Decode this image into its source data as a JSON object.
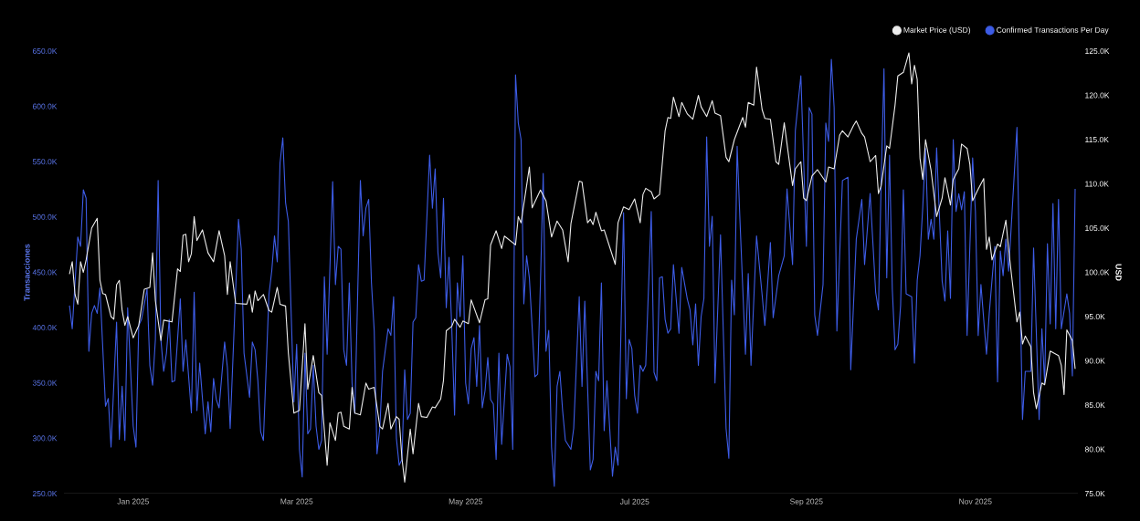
{
  "chart_data": {
    "type": "line",
    "ylabel": "Transacciones",
    "y2label": "USD",
    "legend": "top right",
    "xlim": [
      "2024-12-07",
      "2025-12-08"
    ],
    "xticks": [
      {
        "value": "2025-01-01",
        "label": "Jan 2025"
      },
      {
        "value": "2025-03-01",
        "label": "Mar 2025"
      },
      {
        "value": "2025-05-01",
        "label": "May 2025"
      },
      {
        "value": "2025-07-01",
        "label": "Jul 2025"
      },
      {
        "value": "2025-09-01",
        "label": "Sep 2025"
      },
      {
        "value": "2025-11-01",
        "label": "Nov 2025"
      }
    ],
    "ylim": [
      250000,
      650000
    ],
    "yticks": [
      {
        "value": 250000,
        "label": "250.0K"
      },
      {
        "value": 300000,
        "label": "300.0K"
      },
      {
        "value": 350000,
        "label": "350.0K"
      },
      {
        "value": 400000,
        "label": "400.0K"
      },
      {
        "value": 450000,
        "label": "450.0K"
      },
      {
        "value": 500000,
        "label": "500.0K"
      },
      {
        "value": 550000,
        "label": "550.0K"
      },
      {
        "value": 600000,
        "label": "600.0K"
      },
      {
        "value": 650000,
        "label": "650.0K"
      }
    ],
    "y2lim": [
      75000,
      125000
    ],
    "y2ticks": [
      {
        "value": 75000,
        "label": "75.0K"
      },
      {
        "value": 80000,
        "label": "80.0K"
      },
      {
        "value": 85000,
        "label": "85.0K"
      },
      {
        "value": 90000,
        "label": "90.0K"
      },
      {
        "value": 95000,
        "label": "95.0K"
      },
      {
        "value": 100000,
        "label": "100.0K"
      },
      {
        "value": 105000,
        "label": "105.0K"
      },
      {
        "value": 110000,
        "label": "110.0K"
      },
      {
        "value": 115000,
        "label": "115.0K"
      },
      {
        "value": 120000,
        "label": "120.0K"
      },
      {
        "value": 125000,
        "label": "125.0K"
      }
    ],
    "series": [
      {
        "name": "Market Price (USD)",
        "color": "#ececec",
        "axis": "y2",
        "x": [
          "2024-12-09",
          "2024-12-10",
          "2024-12-11",
          "2024-12-12",
          "2024-12-13",
          "2024-12-14",
          "2024-12-15",
          "2024-12-17",
          "2024-12-19",
          "2024-12-20",
          "2024-12-21",
          "2024-12-22",
          "2024-12-24",
          "2024-12-25",
          "2024-12-26",
          "2024-12-27",
          "2024-12-28",
          "2024-12-29",
          "2024-12-30",
          "2025-01-01",
          "2025-01-03",
          "2025-01-05",
          "2025-01-07",
          "2025-01-08",
          "2025-01-09",
          "2025-01-11",
          "2025-01-12",
          "2025-01-15",
          "2025-01-17",
          "2025-01-18",
          "2025-01-19",
          "2025-01-20",
          "2025-01-21",
          "2025-01-22",
          "2025-01-23",
          "2025-01-24",
          "2025-01-26",
          "2025-01-28",
          "2025-01-30",
          "2025-02-01",
          "2025-02-03",
          "2025-02-04",
          "2025-02-05",
          "2025-02-07",
          "2025-02-11",
          "2025-02-12",
          "2025-02-13",
          "2025-02-14",
          "2025-02-15",
          "2025-02-17",
          "2025-02-19",
          "2025-02-20",
          "2025-02-22",
          "2025-02-23",
          "2025-02-25",
          "2025-02-26",
          "2025-02-28",
          "2025-03-02",
          "2025-03-04",
          "2025-03-05",
          "2025-03-07",
          "2025-03-09",
          "2025-03-10",
          "2025-03-12",
          "2025-03-13",
          "2025-03-15",
          "2025-03-16",
          "2025-03-17",
          "2025-03-18",
          "2025-03-20",
          "2025-03-21",
          "2025-03-22",
          "2025-03-24",
          "2025-03-26",
          "2025-03-27",
          "2025-03-29",
          "2025-03-31",
          "2025-04-01",
          "2025-04-03",
          "2025-04-04",
          "2025-04-06",
          "2025-04-07",
          "2025-04-08",
          "2025-04-09",
          "2025-04-11",
          "2025-04-12",
          "2025-04-14",
          "2025-04-15",
          "2025-04-17",
          "2025-04-19",
          "2025-04-20",
          "2025-04-22",
          "2025-04-23",
          "2025-04-24",
          "2025-04-26",
          "2025-04-27",
          "2025-04-29",
          "2025-04-30",
          "2025-05-02",
          "2025-05-03",
          "2025-05-06",
          "2025-05-08",
          "2025-05-09",
          "2025-05-10",
          "2025-05-12",
          "2025-05-14",
          "2025-05-15",
          "2025-05-17",
          "2025-05-19",
          "2025-05-20",
          "2025-05-21",
          "2025-05-24",
          "2025-05-25",
          "2025-05-28",
          "2025-05-30",
          "2025-06-01",
          "2025-06-03",
          "2025-06-05",
          "2025-06-07",
          "2025-06-08",
          "2025-06-11",
          "2025-06-12",
          "2025-06-14",
          "2025-06-15",
          "2025-06-16",
          "2025-06-17",
          "2025-06-19",
          "2025-06-20",
          "2025-06-24",
          "2025-06-25",
          "2025-06-27",
          "2025-06-29",
          "2025-07-01",
          "2025-07-03",
          "2025-07-04",
          "2025-07-05",
          "2025-07-07",
          "2025-07-08",
          "2025-07-10",
          "2025-07-12",
          "2025-07-13",
          "2025-07-14",
          "2025-07-15",
          "2025-07-17",
          "2025-07-18",
          "2025-07-20",
          "2025-07-22",
          "2025-07-24",
          "2025-07-25",
          "2025-07-27",
          "2025-07-29",
          "2025-07-30",
          "2025-08-01",
          "2025-08-03",
          "2025-08-04",
          "2025-08-06",
          "2025-08-09",
          "2025-08-10",
          "2025-08-11",
          "2025-08-13",
          "2025-08-14",
          "2025-08-16",
          "2025-08-17",
          "2025-08-19",
          "2025-08-21",
          "2025-08-22",
          "2025-08-24",
          "2025-08-27",
          "2025-08-28",
          "2025-08-30",
          "2025-08-31",
          "2025-09-01",
          "2025-09-03",
          "2025-09-05",
          "2025-09-08",
          "2025-09-09",
          "2025-09-11",
          "2025-09-13",
          "2025-09-14",
          "2025-09-16",
          "2025-09-18",
          "2025-09-19",
          "2025-09-21",
          "2025-09-22",
          "2025-09-24",
          "2025-09-26",
          "2025-09-27",
          "2025-09-28",
          "2025-09-30",
          "2025-10-01",
          "2025-10-03",
          "2025-10-04",
          "2025-10-06",
          "2025-10-08",
          "2025-10-09",
          "2025-10-10",
          "2025-10-11",
          "2025-10-12",
          "2025-10-13",
          "2025-10-14",
          "2025-10-16",
          "2025-10-18",
          "2025-10-20",
          "2025-10-21",
          "2025-10-23",
          "2025-10-24",
          "2025-10-26",
          "2025-10-27",
          "2025-10-29",
          "2025-10-30",
          "2025-10-31",
          "2025-11-02",
          "2025-11-04",
          "2025-11-05",
          "2025-11-06",
          "2025-11-07",
          "2025-11-09",
          "2025-11-10",
          "2025-11-12",
          "2025-11-13",
          "2025-11-14",
          "2025-11-16",
          "2025-11-17",
          "2025-11-18",
          "2025-11-19",
          "2025-11-21",
          "2025-11-22",
          "2025-11-23",
          "2025-11-25",
          "2025-11-26",
          "2025-11-28",
          "2025-12-01",
          "2025-12-02",
          "2025-12-03",
          "2025-12-04",
          "2025-12-06",
          "2025-12-07"
        ],
        "values": [
          99800,
          101200,
          97500,
          96400,
          101200,
          100000,
          101400,
          105000,
          106100,
          99100,
          97600,
          97500,
          95000,
          94700,
          98600,
          99100,
          95700,
          94000,
          95000,
          92600,
          94000,
          98100,
          98300,
          102200,
          96800,
          92300,
          94600,
          94400,
          100400,
          100100,
          104200,
          104300,
          101200,
          102100,
          106300,
          103600,
          104800,
          102200,
          101200,
          104700,
          101900,
          97500,
          101200,
          96500,
          96400,
          97500,
          95500,
          97900,
          96800,
          97500,
          95700,
          95500,
          98300,
          96400,
          96200,
          90900,
          84100,
          84400,
          94200,
          86800,
          90600,
          86400,
          86100,
          78200,
          83000,
          81000,
          84100,
          84200,
          82600,
          82300,
          87000,
          84100,
          83900,
          87500,
          86800,
          87000,
          82600,
          82300,
          85200,
          82300,
          83700,
          83400,
          79000,
          76300,
          82300,
          79500,
          85200,
          83700,
          83600,
          84800,
          84700,
          85700,
          87800,
          93400,
          93900,
          94700,
          93800,
          94500,
          94200,
          96900,
          94300,
          96900,
          97000,
          103100,
          104700,
          102700,
          104100,
          103600,
          103100,
          106300,
          105600,
          111900,
          107300,
          109300,
          108100,
          104000,
          105800,
          104800,
          101200,
          105500,
          110300,
          110200,
          105600,
          106000,
          105400,
          106800,
          104700,
          104800,
          100900,
          105600,
          107400,
          107100,
          108300,
          105600,
          108800,
          109500,
          109100,
          108300,
          108800,
          116000,
          117500,
          117400,
          119800,
          117600,
          119200,
          117900,
          117300,
          120000,
          118700,
          117600,
          119400,
          118000,
          117700,
          113000,
          112500,
          115000,
          117500,
          116400,
          119200,
          118900,
          123200,
          118400,
          117400,
          117300,
          112500,
          112200,
          116900,
          109800,
          111700,
          112500,
          108400,
          108100,
          110900,
          111600,
          110200,
          111900,
          111700,
          115500,
          116000,
          115300,
          116600,
          117100,
          115700,
          115300,
          112500,
          113200,
          108900,
          109800,
          114300,
          114000,
          118900,
          122200,
          122600,
          124800,
          121300,
          123400,
          121800,
          112900,
          110500,
          115000,
          111500,
          106300,
          108400,
          110700,
          107600,
          110500,
          111700,
          114500,
          114000,
          112200,
          108100,
          109400,
          110600,
          102600,
          104000,
          101400,
          103200,
          102900,
          105900,
          102600,
          99800,
          94400,
          95500,
          91900,
          92800,
          91600,
          86400,
          84600,
          87500,
          87300,
          91100,
          90600,
          89500,
          86200,
          93500,
          92300,
          89100
        ]
      },
      {
        "name": "Confirmed Transactions Per Day",
        "color": "#3d5ce6",
        "x": [
          "2024-12-09",
          "2024-12-10",
          "2024-12-12",
          "2024-12-13",
          "2024-12-14",
          "2024-12-15",
          "2024-12-16",
          "2024-12-17",
          "2024-12-18",
          "2024-12-19",
          "2024-12-20",
          "2024-12-22",
          "2024-12-23",
          "2024-12-24",
          "2024-12-26",
          "2024-12-27",
          "2024-12-28",
          "2024-12-29",
          "2024-12-30",
          "2025-01-01",
          "2025-01-02",
          "2025-01-03",
          "2025-01-04",
          "2025-01-06",
          "2025-01-07",
          "2025-01-08",
          "2025-01-09",
          "2025-01-10",
          "2025-01-11",
          "2025-01-12",
          "2025-01-13",
          "2025-01-14",
          "2025-01-15",
          "2025-01-16",
          "2025-01-18",
          "2025-01-19",
          "2025-01-20",
          "2025-01-22",
          "2025-01-23",
          "2025-01-24",
          "2025-01-25",
          "2025-01-27",
          "2025-01-28",
          "2025-01-29",
          "2025-01-30",
          "2025-01-31",
          "2025-02-01",
          "2025-02-03",
          "2025-02-04",
          "2025-02-05",
          "2025-02-08",
          "2025-02-09",
          "2025-02-10",
          "2025-02-12",
          "2025-02-13",
          "2025-02-14",
          "2025-02-15",
          "2025-02-16",
          "2025-02-17",
          "2025-02-19",
          "2025-02-20",
          "2025-02-21",
          "2025-02-22",
          "2025-02-23",
          "2025-02-24",
          "2025-02-25",
          "2025-02-26",
          "2025-02-28",
          "2025-03-01",
          "2025-03-02",
          "2025-03-03",
          "2025-03-04",
          "2025-03-05",
          "2025-03-06",
          "2025-03-07",
          "2025-03-08",
          "2025-03-09",
          "2025-03-10",
          "2025-03-11",
          "2025-03-12",
          "2025-03-14",
          "2025-03-15",
          "2025-03-16",
          "2025-03-17",
          "2025-03-18",
          "2025-03-19",
          "2025-03-20",
          "2025-03-21",
          "2025-03-22",
          "2025-03-24",
          "2025-03-25",
          "2025-03-26",
          "2025-03-27",
          "2025-03-28",
          "2025-03-29",
          "2025-03-30",
          "2025-03-31",
          "2025-04-01",
          "2025-04-03",
          "2025-04-04",
          "2025-04-05",
          "2025-04-06",
          "2025-04-07",
          "2025-04-08",
          "2025-04-09",
          "2025-04-10",
          "2025-04-11",
          "2025-04-12",
          "2025-04-13",
          "2025-04-14",
          "2025-04-15",
          "2025-04-16",
          "2025-04-18",
          "2025-04-19",
          "2025-04-20",
          "2025-04-21",
          "2025-04-22",
          "2025-04-23",
          "2025-04-24",
          "2025-04-25",
          "2025-04-26",
          "2025-04-27",
          "2025-04-28",
          "2025-04-29",
          "2025-04-30",
          "2025-05-01",
          "2025-05-02",
          "2025-05-03",
          "2025-05-04",
          "2025-05-05",
          "2025-05-06",
          "2025-05-07",
          "2025-05-08",
          "2025-05-09",
          "2025-05-10",
          "2025-05-11",
          "2025-05-12",
          "2025-05-13",
          "2025-05-14",
          "2025-05-16",
          "2025-05-17",
          "2025-05-18",
          "2025-05-19",
          "2025-05-20",
          "2025-05-21",
          "2025-05-22",
          "2025-05-23",
          "2025-05-24",
          "2025-05-26",
          "2025-05-27",
          "2025-05-28",
          "2025-05-29",
          "2025-05-30",
          "2025-05-31",
          "2025-06-01",
          "2025-06-02",
          "2025-06-03",
          "2025-06-04",
          "2025-06-05",
          "2025-06-06",
          "2025-06-08",
          "2025-06-09",
          "2025-06-11",
          "2025-06-12",
          "2025-06-13",
          "2025-06-15",
          "2025-06-16",
          "2025-06-17",
          "2025-06-18",
          "2025-06-19",
          "2025-06-20",
          "2025-06-21",
          "2025-06-23",
          "2025-06-24",
          "2025-06-25",
          "2025-06-27",
          "2025-06-28",
          "2025-06-29",
          "2025-06-30",
          "2025-07-01",
          "2025-07-02",
          "2025-07-03",
          "2025-07-04",
          "2025-07-05",
          "2025-07-07",
          "2025-07-08",
          "2025-07-09",
          "2025-07-10",
          "2025-07-11",
          "2025-07-12",
          "2025-07-13",
          "2025-07-14",
          "2025-07-15",
          "2025-07-17",
          "2025-07-18",
          "2025-07-20",
          "2025-07-21",
          "2025-07-22",
          "2025-07-23",
          "2025-07-24",
          "2025-07-25",
          "2025-07-26",
          "2025-07-27",
          "2025-07-28",
          "2025-07-29",
          "2025-07-30",
          "2025-08-01",
          "2025-08-03",
          "2025-08-04",
          "2025-08-05",
          "2025-08-06",
          "2025-08-07",
          "2025-08-08",
          "2025-08-10",
          "2025-08-11",
          "2025-08-12",
          "2025-08-14",
          "2025-08-16",
          "2025-08-17",
          "2025-08-19",
          "2025-08-20",
          "2025-08-22",
          "2025-08-24",
          "2025-08-25",
          "2025-08-27",
          "2025-08-28",
          "2025-08-30",
          "2025-09-01",
          "2025-09-02",
          "2025-09-03",
          "2025-09-04",
          "2025-09-05",
          "2025-09-07",
          "2025-09-08",
          "2025-09-09",
          "2025-09-10",
          "2025-09-11",
          "2025-09-12",
          "2025-09-14",
          "2025-09-16",
          "2025-09-17",
          "2025-09-19",
          "2025-09-21",
          "2025-09-22",
          "2025-09-24",
          "2025-09-26",
          "2025-09-27",
          "2025-09-28",
          "2025-09-29",
          "2025-09-30",
          "2025-10-01",
          "2025-10-02",
          "2025-10-03",
          "2025-10-04",
          "2025-10-05",
          "2025-10-06",
          "2025-10-07",
          "2025-10-09",
          "2025-10-10",
          "2025-10-11",
          "2025-10-12",
          "2025-10-13",
          "2025-10-14",
          "2025-10-15",
          "2025-10-16",
          "2025-10-17",
          "2025-10-18",
          "2025-10-20",
          "2025-10-21",
          "2025-10-22",
          "2025-10-23",
          "2025-10-24",
          "2025-10-25",
          "2025-10-26",
          "2025-10-27",
          "2025-10-28",
          "2025-10-29",
          "2025-10-31",
          "2025-11-01",
          "2025-11-02",
          "2025-11-03",
          "2025-11-05",
          "2025-11-06",
          "2025-11-08",
          "2025-11-09",
          "2025-11-10",
          "2025-11-11",
          "2025-11-12",
          "2025-11-13",
          "2025-11-16",
          "2025-11-18",
          "2025-11-19",
          "2025-11-21",
          "2025-11-22",
          "2025-11-24",
          "2025-11-25",
          "2025-11-26",
          "2025-11-27",
          "2025-11-28",
          "2025-11-29",
          "2025-11-30",
          "2025-12-01",
          "2025-12-02",
          "2025-12-04",
          "2025-12-05",
          "2025-12-06",
          "2025-12-07"
        ],
        "values": [
          420000,
          399000,
          482000,
          473500,
          524600,
          517000,
          378700,
          413000,
          420000,
          413000,
          436000,
          329000,
          336000,
          292000,
          405000,
          299000,
          347000,
          298000,
          418000,
          311000,
          292000,
          402000,
          407500,
          435000,
          366000,
          348000,
          389000,
          533000,
          389000,
          360500,
          377000,
          407500,
          351000,
          352000,
          426000,
          360500,
          389000,
          323000,
          432000,
          325000,
          368000,
          304000,
          333000,
          306000,
          354000,
          335000,
          327500,
          387000,
          364000,
          309000,
          498000,
          471000,
          377000,
          337000,
          387000,
          380000,
          352000,
          306000,
          298000,
          430000,
          451000,
          483000,
          459500,
          549000,
          571600,
          513000,
          496000,
          333000,
          385000,
          290000,
          265000,
          377000,
          304000,
          308500,
          366000,
          311000,
          290000,
          298000,
          446000,
          376000,
          532000,
          439000,
          473500,
          471000,
          380000,
          366000,
          440500,
          350000,
          322600,
          533000,
          483000,
          508000,
          516000,
          440500,
          397000,
          286000,
          309000,
          360500,
          399000,
          393000,
          428000,
          300000,
          275600,
          281000,
          362000,
          317000,
          322600,
          405000,
          409000,
          457000,
          442000,
          443000,
          556000,
          508000,
          543600,
          467700,
          445000,
          517000,
          418000,
          463600,
          399000,
          321000,
          440500,
          410000,
          465000,
          350000,
          331000,
          381000,
          391000,
          347000,
          402000,
          327500,
          343000,
          373000,
          335000,
          331000,
          281000,
          377000,
          294500,
          376000,
          364600,
          290000,
          628600,
          585000,
          570000,
          421500,
          465000,
          445000,
          355600,
          358000,
          440500,
          539500,
          378700,
          397600,
          292000,
          256600,
          347000,
          360500,
          325000,
          298000,
          290000,
          309000,
          428000,
          347000,
          424000,
          271400,
          281000,
          360500,
          352000,
          440500,
          307000,
          352000,
          265700,
          292000,
          275600,
          504000,
          335800,
          389400,
          381000,
          339000,
          322600,
          366000,
          360500,
          366000,
          505000,
          359700,
          352000,
          445000,
          446000,
          407500,
          395000,
          399000,
          457000,
          395000,
          454500,
          426000,
          416000,
          384400,
          421500,
          366000,
          410000,
          426500,
          572500,
          473500,
          500700,
          350000,
          484000,
          309000,
          282000,
          443000,
          411600,
          564000,
          498000,
          376000,
          449000,
          366000,
          483000,
          430000,
          402000,
          477000,
          409000,
          447000,
          465000,
          525500,
          457000,
          578000,
          627700,
          473500,
          599000,
          593000,
          411600,
          393000,
          439000,
          585000,
          568400,
          642600,
          599000,
          397000,
          533000,
          536000,
          362000,
          480000,
          516000,
          457000,
          521300,
          432000,
          416000,
          533700,
          634000,
          445000,
          556000,
          435000,
          380000,
          385000,
          420000,
          524600,
          430600,
          428000,
          368000,
          443000,
          465000,
          509000,
          562000,
          480000,
          498000,
          480000,
          562600,
          442000,
          424000,
          487500,
          426500,
          570000,
          505000,
          521000,
          506500,
          523000,
          393000,
          553500,
          505000,
          393000,
          439000,
          376000,
          413000,
          473500,
          351000,
          469400,
          447000,
          480000,
          451000,
          581000,
          317000,
          360500,
          360500,
          472000,
          317000,
          399000,
          350000,
          476000,
          403400,
          512300,
          399000,
          516000,
          399000,
          430600,
          413000,
          356400,
          525500
        ]
      }
    ]
  }
}
